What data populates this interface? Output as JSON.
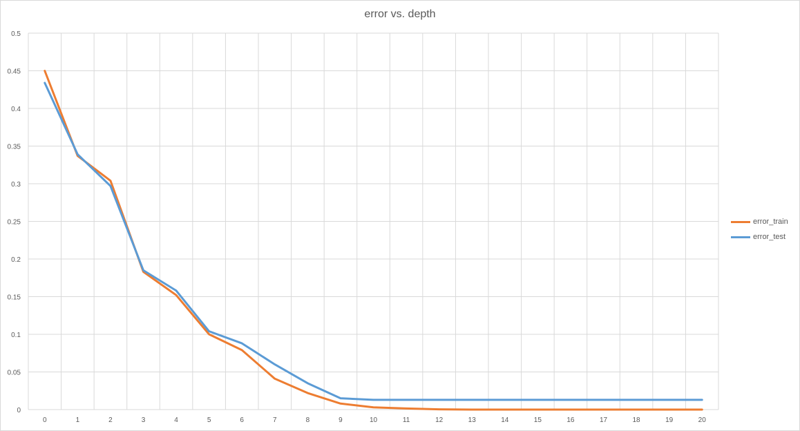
{
  "chart_data": {
    "type": "line",
    "title": "error vs. depth",
    "xlabel": "",
    "ylabel": "",
    "x": [
      0,
      1,
      2,
      3,
      4,
      5,
      6,
      7,
      8,
      9,
      10,
      11,
      12,
      13,
      14,
      15,
      16,
      17,
      18,
      19,
      20
    ],
    "x_tick_labels": [
      "0",
      "1",
      "2",
      "3",
      "4",
      "5",
      "6",
      "7",
      "8",
      "9",
      "10",
      "11",
      "12",
      "13",
      "14",
      "15",
      "16",
      "17",
      "18",
      "19",
      "20"
    ],
    "y_tick_labels": [
      "0",
      "0.05",
      "0.1",
      "0.15",
      "0.2",
      "0.25",
      "0.3",
      "0.35",
      "0.4",
      "0.45",
      "0.5"
    ],
    "y_ticks": [
      0,
      0.05,
      0.1,
      0.15,
      0.2,
      0.25,
      0.3,
      0.35,
      0.4,
      0.45,
      0.5
    ],
    "ylim": [
      0,
      0.5
    ],
    "grid": true,
    "legend_position": "right",
    "series": [
      {
        "name": "error_train",
        "color": "#ED7D31",
        "values": [
          0.45,
          0.337,
          0.304,
          0.183,
          0.152,
          0.1,
          0.079,
          0.041,
          0.022,
          0.008,
          0.003,
          0.0015,
          0.0003,
          0,
          0,
          0,
          0,
          0,
          0,
          0,
          0
        ]
      },
      {
        "name": "error_test",
        "color": "#5B9BD5",
        "values": [
          0.434,
          0.339,
          0.297,
          0.185,
          0.158,
          0.104,
          0.088,
          0.06,
          0.035,
          0.015,
          0.013,
          0.013,
          0.013,
          0.013,
          0.013,
          0.013,
          0.013,
          0.013,
          0.013,
          0.013,
          0.013
        ]
      }
    ]
  }
}
